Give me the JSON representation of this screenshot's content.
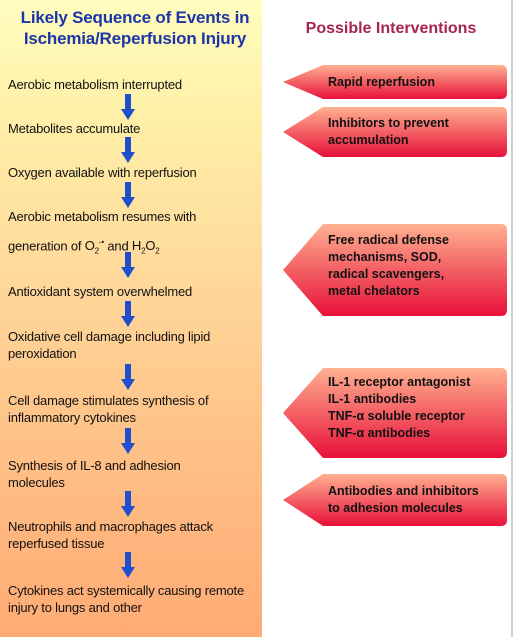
{
  "left": {
    "title_line1": "Likely Sequence of Events in",
    "title_line2": "Ischemia/Reperfusion Injury",
    "steps": [
      "Aerobic metabolism interrupted",
      "Metabolites accumulate",
      "Oxygen available with reperfusion",
      "Aerobic metabolism resumes with",
      "generation of",
      "Antioxidant system overwhelmed",
      "Oxidative cell damage including lipid peroxidation",
      "Cell damage stimulates synthesis of inflammatory cytokines",
      "Synthesis of IL-8 and adhesion molecules",
      "Neutrophils and macrophages attack reperfused tissue",
      "Cytokines act systemically causing remote injury to lungs and other"
    ],
    "chem": {
      "o2": "O",
      "o2_sub": "2",
      "o2_sup": "-•",
      "and": "and",
      "h2o2_h": "H",
      "h2o2_sub1": "2",
      "h2o2_o": "O",
      "h2o2_sub2": "2"
    }
  },
  "right": {
    "title": "Possible Interventions",
    "interventions": [
      [
        "Rapid reperfusion"
      ],
      [
        "Inhibitors to prevent",
        "accumulation"
      ],
      [
        "Free radical defense",
        "mechanisms, SOD,",
        "radical scavengers,",
        "metal chelators"
      ],
      [
        "IL-1 receptor antagonist",
        "IL-1 antibodies",
        "TNF-α soluble receptor",
        "TNF-α antibodies"
      ],
      [
        "Antibodies and inhibitors",
        "to adhesion molecules"
      ]
    ]
  },
  "colors": {
    "left_title": "#1d36a6",
    "right_title": "#a5254c",
    "arrow": "#1f4fcc",
    "callout_top": "#ffb090",
    "callout_bottom": "#e8103a"
  }
}
